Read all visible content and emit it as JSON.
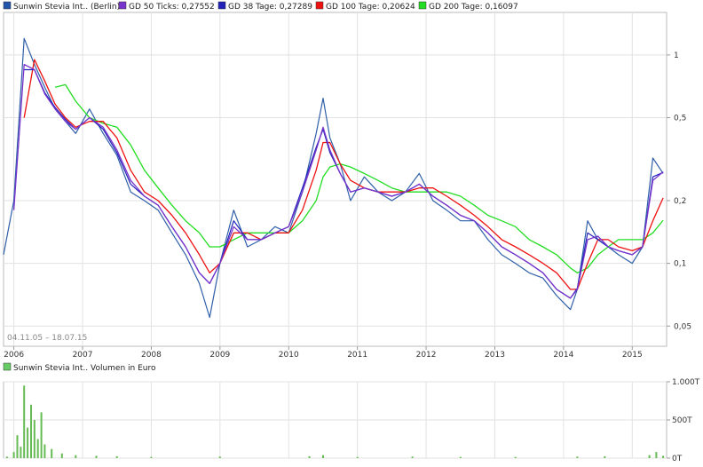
{
  "legend": {
    "items": [
      {
        "label": "Sunwin Stevia Int.. (Berlin)",
        "color": "#2255aa"
      },
      {
        "label": "GD 50 Ticks: 0,27552",
        "color": "#7733cc"
      },
      {
        "label": "GD 38 Tage: 0,27289",
        "color": "#2222bb"
      },
      {
        "label": "GD 100 Tage: 0,20624",
        "color": "#ee1111"
      },
      {
        "label": "GD 200 Tage: 0,16097",
        "color": "#22dd22"
      }
    ]
  },
  "date_range": "04.11.05 – 18.07.15",
  "volume_legend": {
    "label": "Sunwin Stevia Int.. Volumen in Euro",
    "color": "#66cc66"
  },
  "chart_data": [
    {
      "type": "line",
      "scale": "log",
      "x_ticks": [
        "2006",
        "2007",
        "2008",
        "2009",
        "2010",
        "2011",
        "2012",
        "2013",
        "2014",
        "2015"
      ],
      "y_ticks": [
        "1",
        "0,5",
        "0,2",
        "0,1",
        "0,05"
      ],
      "y_tick_values": [
        1,
        0.5,
        0.2,
        0.1,
        0.05
      ],
      "ylim": [
        0.04,
        1.6
      ],
      "x": [
        2005.85,
        2006.0,
        2006.15,
        2006.3,
        2006.45,
        2006.6,
        2006.75,
        2006.9,
        2007.1,
        2007.3,
        2007.5,
        2007.7,
        2007.9,
        2008.1,
        2008.3,
        2008.5,
        2008.7,
        2008.85,
        2009.0,
        2009.2,
        2009.4,
        2009.6,
        2009.8,
        2010.0,
        2010.2,
        2010.4,
        2010.5,
        2010.6,
        2010.75,
        2010.9,
        2011.1,
        2011.3,
        2011.5,
        2011.7,
        2011.9,
        2012.1,
        2012.3,
        2012.5,
        2012.7,
        2012.9,
        2013.1,
        2013.3,
        2013.5,
        2013.7,
        2013.9,
        2014.1,
        2014.2,
        2014.35,
        2014.5,
        2014.65,
        2014.8,
        2015.0,
        2015.15,
        2015.3,
        2015.45
      ],
      "series": [
        {
          "name": "Sunwin Stevia Int.. (Berlin)",
          "color": "#2f5fa8",
          "width": 1.2,
          "values": [
            0.11,
            0.2,
            1.2,
            0.9,
            0.7,
            0.55,
            0.48,
            0.42,
            0.55,
            0.42,
            0.33,
            0.22,
            0.2,
            0.18,
            0.14,
            0.11,
            0.08,
            0.055,
            0.1,
            0.18,
            0.12,
            0.13,
            0.15,
            0.14,
            0.22,
            0.42,
            0.62,
            0.4,
            0.3,
            0.2,
            0.26,
            0.22,
            0.2,
            0.22,
            0.27,
            0.2,
            0.18,
            0.16,
            0.16,
            0.13,
            0.11,
            0.1,
            0.09,
            0.085,
            0.07,
            0.06,
            0.075,
            0.16,
            0.13,
            0.12,
            0.11,
            0.1,
            0.12,
            0.32,
            0.27
          ]
        },
        {
          "name": "GD 50 Ticks: 0,27552",
          "color": "#7733cc",
          "width": 1.3,
          "values": [
            null,
            0.18,
            0.9,
            0.85,
            0.65,
            0.55,
            0.48,
            0.44,
            0.5,
            0.45,
            0.35,
            0.25,
            0.21,
            0.19,
            0.15,
            0.12,
            0.09,
            0.08,
            0.1,
            0.15,
            0.13,
            0.13,
            0.14,
            0.15,
            0.22,
            0.35,
            0.45,
            0.35,
            0.27,
            0.22,
            0.23,
            0.22,
            0.21,
            0.22,
            0.24,
            0.21,
            0.19,
            0.17,
            0.16,
            0.14,
            0.12,
            0.11,
            0.1,
            0.09,
            0.075,
            0.068,
            0.075,
            0.13,
            0.135,
            0.12,
            0.115,
            0.11,
            0.12,
            0.25,
            0.275
          ]
        },
        {
          "name": "GD 38 Tage: 0,27289",
          "color": "#2222bb",
          "width": 1.2,
          "values": [
            null,
            null,
            0.85,
            0.85,
            0.66,
            0.56,
            0.49,
            0.44,
            0.5,
            0.44,
            0.34,
            0.24,
            0.21,
            0.19,
            0.15,
            0.12,
            0.09,
            0.08,
            0.1,
            0.16,
            0.13,
            0.13,
            0.14,
            0.15,
            0.23,
            0.36,
            0.44,
            0.34,
            0.27,
            0.22,
            0.23,
            0.22,
            0.21,
            0.22,
            0.24,
            0.21,
            0.19,
            0.17,
            0.16,
            0.14,
            0.12,
            0.11,
            0.1,
            0.09,
            0.075,
            0.068,
            0.076,
            0.14,
            0.13,
            0.12,
            0.115,
            0.11,
            0.12,
            0.26,
            0.273
          ]
        },
        {
          "name": "GD 100 Tage: 0,20624",
          "color": "#ee1111",
          "width": 1.3,
          "values": [
            null,
            null,
            0.5,
            0.95,
            0.75,
            0.58,
            0.5,
            0.45,
            0.48,
            0.48,
            0.4,
            0.28,
            0.22,
            0.2,
            0.17,
            0.14,
            0.11,
            0.09,
            0.1,
            0.14,
            0.14,
            0.13,
            0.14,
            0.14,
            0.18,
            0.28,
            0.38,
            0.38,
            0.3,
            0.25,
            0.23,
            0.22,
            0.22,
            0.22,
            0.23,
            0.23,
            0.21,
            0.19,
            0.17,
            0.15,
            0.13,
            0.12,
            0.11,
            0.1,
            0.09,
            0.075,
            0.075,
            0.1,
            0.13,
            0.13,
            0.12,
            0.115,
            0.12,
            0.16,
            0.206
          ]
        },
        {
          "name": "GD 200 Tage: 0,16097",
          "color": "#22dd22",
          "width": 1.3,
          "values": [
            null,
            null,
            null,
            null,
            null,
            0.7,
            0.72,
            0.6,
            0.5,
            0.47,
            0.45,
            0.37,
            0.28,
            0.23,
            0.19,
            0.16,
            0.14,
            0.12,
            0.12,
            0.13,
            0.14,
            0.14,
            0.14,
            0.14,
            0.16,
            0.2,
            0.26,
            0.29,
            0.3,
            0.29,
            0.27,
            0.25,
            0.23,
            0.22,
            0.22,
            0.22,
            0.22,
            0.21,
            0.19,
            0.17,
            0.16,
            0.15,
            0.13,
            0.12,
            0.11,
            0.095,
            0.09,
            0.095,
            0.11,
            0.12,
            0.13,
            0.13,
            0.13,
            0.14,
            0.161
          ]
        }
      ]
    },
    {
      "type": "bar",
      "y_ticks": [
        "1.000T",
        "500T",
        "0T"
      ],
      "y_tick_values": [
        1000,
        500,
        0
      ],
      "ylim": [
        0,
        1000
      ],
      "x": [
        2005.9,
        2006.0,
        2006.05,
        2006.1,
        2006.15,
        2006.2,
        2006.25,
        2006.3,
        2006.35,
        2006.4,
        2006.45,
        2006.55,
        2006.7,
        2006.9,
        2007.2,
        2007.5,
        2008.0,
        2009.0,
        2010.3,
        2010.5,
        2011.0,
        2011.8,
        2012.5,
        2013.3,
        2014.2,
        2014.6,
        2015.25,
        2015.35,
        2015.45
      ],
      "values": [
        20,
        80,
        300,
        150,
        950,
        400,
        700,
        500,
        250,
        600,
        180,
        120,
        60,
        40,
        30,
        25,
        15,
        20,
        25,
        40,
        15,
        20,
        15,
        15,
        20,
        25,
        40,
        80,
        30
      ]
    }
  ]
}
